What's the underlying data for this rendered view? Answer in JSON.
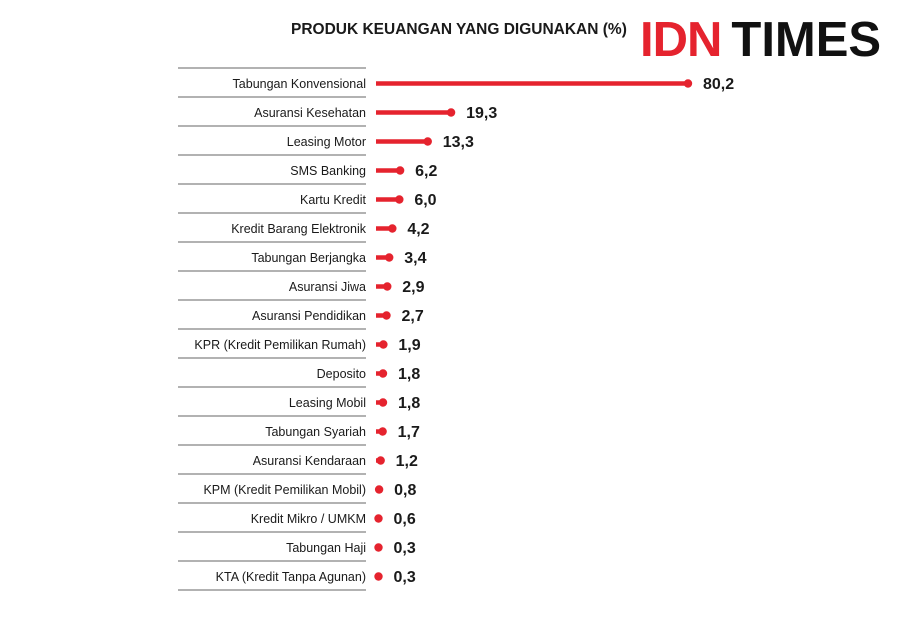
{
  "title": "PRODUK KEUANGAN YANG DIGUNAKAN (%)",
  "logo": {
    "part1": "IDN",
    "part2": "TIMES"
  },
  "colors": {
    "bar": "#e5232e",
    "text": "#1a1a1a",
    "rule": "#333333"
  },
  "chart_data": {
    "type": "bar",
    "orientation": "horizontal",
    "title": "PRODUK KEUANGAN YANG DIGUNAKAN (%)",
    "xlabel": "",
    "ylabel": "",
    "grid": false,
    "categories": [
      "Tabungan Konvensional",
      "Asuransi Kesehatan",
      "Leasing Motor",
      "SMS Banking",
      "Kartu Kredit",
      "Kredit Barang Elektronik",
      "Tabungan Berjangka",
      "Asuransi Jiwa",
      "Asuransi Pendidikan",
      "KPR (Kredit Pemilikan Rumah)",
      "Deposito",
      "Leasing Mobil",
      "Tabungan Syariah",
      "Asuransi Kendaraan",
      "KPM (Kredit Pemilikan Mobil)",
      "Kredit Mikro / UMKM",
      "Tabungan Haji",
      "KTA (Kredit Tanpa Agunan)"
    ],
    "values": [
      80.2,
      19.3,
      13.3,
      6.2,
      6.0,
      4.2,
      3.4,
      2.9,
      2.7,
      1.9,
      1.8,
      1.8,
      1.7,
      1.2,
      0.8,
      0.6,
      0.3,
      0.3
    ],
    "value_labels": [
      "80,2",
      "19,3",
      "13,3",
      "6,2",
      "6,0",
      "4,2",
      "3,4",
      "2,9",
      "2,7",
      "1,9",
      "1,8",
      "1,8",
      "1,7",
      "1,2",
      "0,8",
      "0,6",
      "0,3",
      "0,3"
    ]
  }
}
